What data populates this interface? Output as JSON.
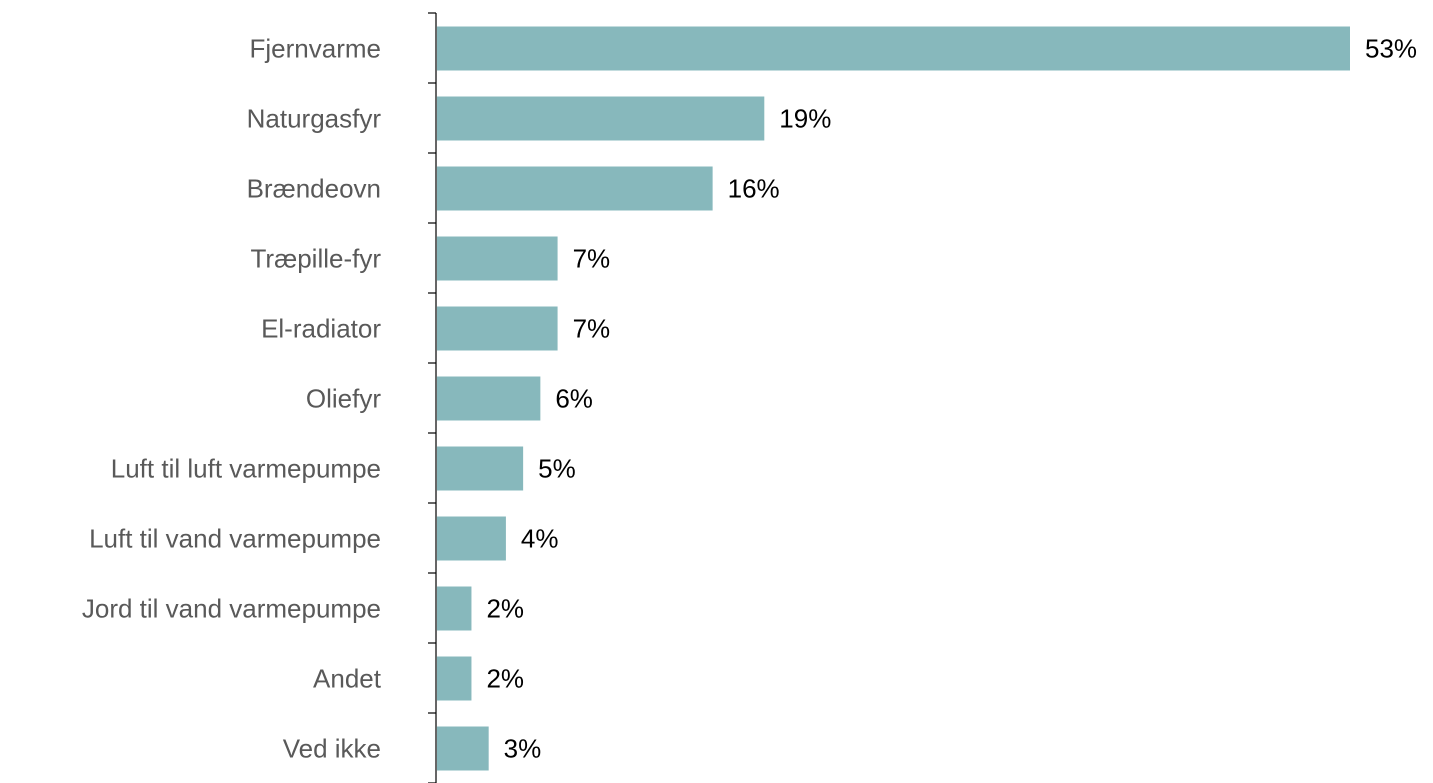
{
  "chart_data": {
    "type": "bar",
    "orientation": "horizontal",
    "categories": [
      "Fjernvarme",
      "Naturgasfyr",
      "Brændeovn",
      "Træpille-fyr",
      "El-radiator",
      "Oliefyr",
      "Luft til luft varmepumpe",
      "Luft til vand varmepumpe",
      "Jord til vand varmepumpe",
      "Andet",
      "Ved ikke"
    ],
    "values": [
      53,
      19,
      16,
      7,
      7,
      6,
      5,
      4,
      2,
      2,
      3
    ],
    "value_labels": [
      "53%",
      "19%",
      "16%",
      "7%",
      "7%",
      "6%",
      "5%",
      "4%",
      "2%",
      "2%",
      "3%"
    ],
    "unit": "%",
    "xlim": [
      0,
      53
    ],
    "bar_color": "#87b8bc",
    "grid": false,
    "legend": "none"
  }
}
